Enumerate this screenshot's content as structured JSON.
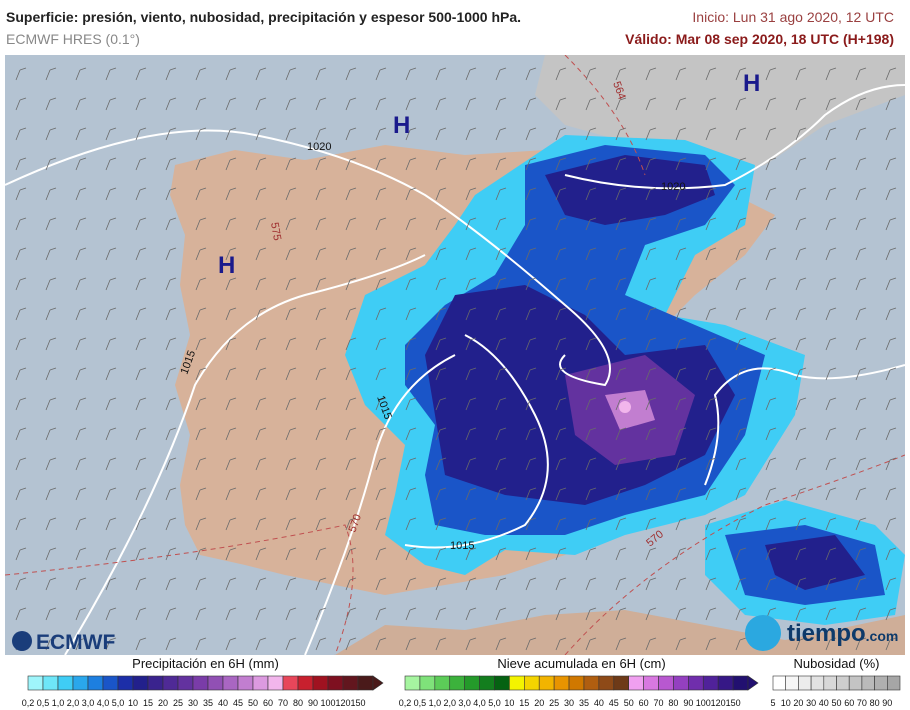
{
  "header": {
    "title": "Superficie: presión, viento, nubosidad, precipitación y espesor 500-1000 hPa.",
    "model": "ECMWF HRES (0.1°)",
    "init": "Inicio: Lun 31 ago 2020, 12 UTC",
    "valid": "Válido: Mar 08 sep 2020, 18 UTC (H+198)"
  },
  "map": {
    "pressure_centers": [
      "H",
      "H",
      "H"
    ],
    "isobar_labels": [
      "1020",
      "1015",
      "1015",
      "1015",
      "1020"
    ],
    "thickness_labels": [
      "564",
      "570",
      "570",
      "575"
    ]
  },
  "logos": {
    "left": "ECMWF",
    "right_main": "tiempo",
    "right_suffix": ".com"
  },
  "legends": [
    {
      "title": "Precipitación en 6H (mm)",
      "items": [
        {
          "label": "0,2",
          "color": "#9ff5fb"
        },
        {
          "label": "0,5",
          "color": "#6ee6f8"
        },
        {
          "label": "1,0",
          "color": "#3fcdf5"
        },
        {
          "label": "2,0",
          "color": "#2aa7ec"
        },
        {
          "label": "3,0",
          "color": "#1d7fe0"
        },
        {
          "label": "4,0",
          "color": "#1a55c8"
        },
        {
          "label": "5,0",
          "color": "#1c2ea8"
        },
        {
          "label": "10",
          "color": "#22208c"
        },
        {
          "label": "15",
          "color": "#3a238e"
        },
        {
          "label": "20",
          "color": "#4f2a96"
        },
        {
          "label": "25",
          "color": "#63329f"
        },
        {
          "label": "30",
          "color": "#7a3ca8"
        },
        {
          "label": "35",
          "color": "#9150b4"
        },
        {
          "label": "40",
          "color": "#a966c2"
        },
        {
          "label": "45",
          "color": "#c27ed0"
        },
        {
          "label": "50",
          "color": "#dc9ae0"
        },
        {
          "label": "60",
          "color": "#f2b6ec"
        },
        {
          "label": "70",
          "color": "#e8465a"
        },
        {
          "label": "80",
          "color": "#c8202e"
        },
        {
          "label": "90",
          "color": "#a01220"
        },
        {
          "label": "100",
          "color": "#7e1020"
        },
        {
          "label": "120",
          "color": "#62161e"
        },
        {
          "label": "150",
          "color": "#4a1a1a"
        }
      ]
    },
    {
      "title": "Nieve acumulada en 6H (cm)",
      "items": [
        {
          "label": "0,2",
          "color": "#a6f5a0"
        },
        {
          "label": "0,5",
          "color": "#7fe27a"
        },
        {
          "label": "1,0",
          "color": "#5ccc58"
        },
        {
          "label": "2,0",
          "color": "#3cb23c"
        },
        {
          "label": "3,0",
          "color": "#249a2a"
        },
        {
          "label": "4,0",
          "color": "#137e1e"
        },
        {
          "label": "5,0",
          "color": "#056212"
        },
        {
          "label": "10",
          "color": "#f4f400"
        },
        {
          "label": "15",
          "color": "#f4d400"
        },
        {
          "label": "20",
          "color": "#f2b400"
        },
        {
          "label": "25",
          "color": "#e89400"
        },
        {
          "label": "30",
          "color": "#d07800"
        },
        {
          "label": "35",
          "color": "#b05e10"
        },
        {
          "label": "40",
          "color": "#8e4a18"
        },
        {
          "label": "45",
          "color": "#6e3a18"
        },
        {
          "label": "50",
          "color": "#f0a0f0"
        },
        {
          "label": "60",
          "color": "#d878e0"
        },
        {
          "label": "70",
          "color": "#b858d0"
        },
        {
          "label": "80",
          "color": "#9440c0"
        },
        {
          "label": "90",
          "color": "#702eac"
        },
        {
          "label": "100",
          "color": "#50229a"
        },
        {
          "label": "120",
          "color": "#361886"
        },
        {
          "label": "150",
          "color": "#221070"
        }
      ]
    },
    {
      "title": "Nubosidad (%)",
      "items": [
        {
          "label": "5",
          "color": "#ffffff"
        },
        {
          "label": "10",
          "color": "#f6f6f6"
        },
        {
          "label": "20",
          "color": "#ececec"
        },
        {
          "label": "30",
          "color": "#e2e2e2"
        },
        {
          "label": "40",
          "color": "#d8d8d8"
        },
        {
          "label": "50",
          "color": "#cecece"
        },
        {
          "label": "60",
          "color": "#c4c4c4"
        },
        {
          "label": "70",
          "color": "#bababa"
        },
        {
          "label": "80",
          "color": "#b0b0b0"
        },
        {
          "label": "90",
          "color": "#a6a6a6"
        }
      ]
    }
  ]
}
